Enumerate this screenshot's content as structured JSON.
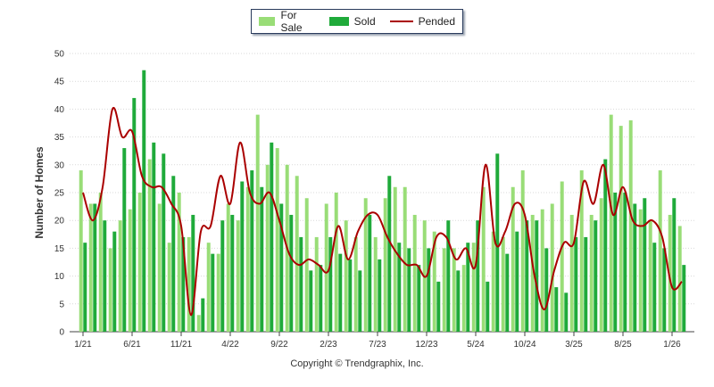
{
  "chart_data": {
    "type": "bar",
    "ylabel": "Number of Homes",
    "xlabel": "",
    "ylim": [
      0,
      50
    ],
    "yticks": [
      0,
      5,
      10,
      15,
      20,
      25,
      30,
      35,
      40,
      45,
      50
    ],
    "x_tick_labels": [
      {
        "label": "1/21",
        "index": 0
      },
      {
        "label": "6/21",
        "index": 5
      },
      {
        "label": "11/21",
        "index": 10
      },
      {
        "label": "4/22",
        "index": 15
      },
      {
        "label": "9/22",
        "index": 20
      },
      {
        "label": "2/23",
        "index": 25
      },
      {
        "label": "7/23",
        "index": 30
      },
      {
        "label": "12/23",
        "index": 35
      },
      {
        "label": "5/24",
        "index": 40
      },
      {
        "label": "10/24",
        "index": 45
      },
      {
        "label": "3/25",
        "index": 50
      },
      {
        "label": "8/25",
        "index": 55
      },
      {
        "label": "1/26",
        "index": 60
      }
    ],
    "legend": {
      "placement": "top-center"
    },
    "series": [
      {
        "name": "For Sale",
        "kind": "bar",
        "color": "#99dd77",
        "values": [
          29,
          23,
          25,
          15,
          20,
          22,
          25,
          31,
          23,
          16,
          25,
          17,
          3,
          16,
          14,
          23,
          20,
          26,
          39,
          30,
          33,
          30,
          28,
          24,
          17,
          23,
          25,
          20,
          17,
          24,
          17,
          24,
          26,
          26,
          21,
          20,
          18,
          15,
          15,
          12,
          16,
          26,
          18,
          17,
          26,
          29,
          21,
          22,
          23,
          27,
          21,
          29,
          21,
          24,
          39,
          37,
          38,
          22,
          20,
          29,
          21,
          19
        ]
      },
      {
        "name": "Sold",
        "kind": "bar",
        "color": "#1faa3a",
        "values": [
          16,
          23,
          20,
          18,
          33,
          42,
          47,
          34,
          32,
          28,
          17,
          21,
          6,
          14,
          20,
          21,
          27,
          29,
          26,
          34,
          23,
          21,
          17,
          11,
          12,
          17,
          14,
          13,
          11,
          21,
          13,
          28,
          16,
          15,
          12,
          15,
          9,
          20,
          11,
          16,
          20,
          9,
          32,
          14,
          18,
          20,
          20,
          15,
          8,
          7,
          17,
          17,
          20,
          31,
          25,
          25,
          23,
          24,
          16,
          15,
          24,
          12
        ]
      },
      {
        "name": "Pended",
        "kind": "line",
        "color": "#aa0000",
        "values": [
          25,
          20,
          26,
          40,
          35,
          36,
          28,
          26,
          26,
          23,
          19,
          3,
          18,
          19,
          28,
          23,
          34,
          25,
          23,
          25,
          20,
          14,
          12,
          13,
          12,
          11,
          19,
          13,
          18,
          21,
          21,
          17,
          14,
          12,
          12,
          10,
          17,
          17,
          13,
          15,
          12,
          30,
          16,
          18,
          23,
          21,
          10,
          4,
          11,
          16,
          16,
          27,
          23,
          30,
          21,
          26,
          20,
          19,
          20,
          17,
          8,
          9
        ]
      }
    ]
  },
  "legend_labels": [
    "For Sale",
    "Sold",
    "Pended"
  ],
  "copyright": "Copyright © Trendgraphix, Inc."
}
